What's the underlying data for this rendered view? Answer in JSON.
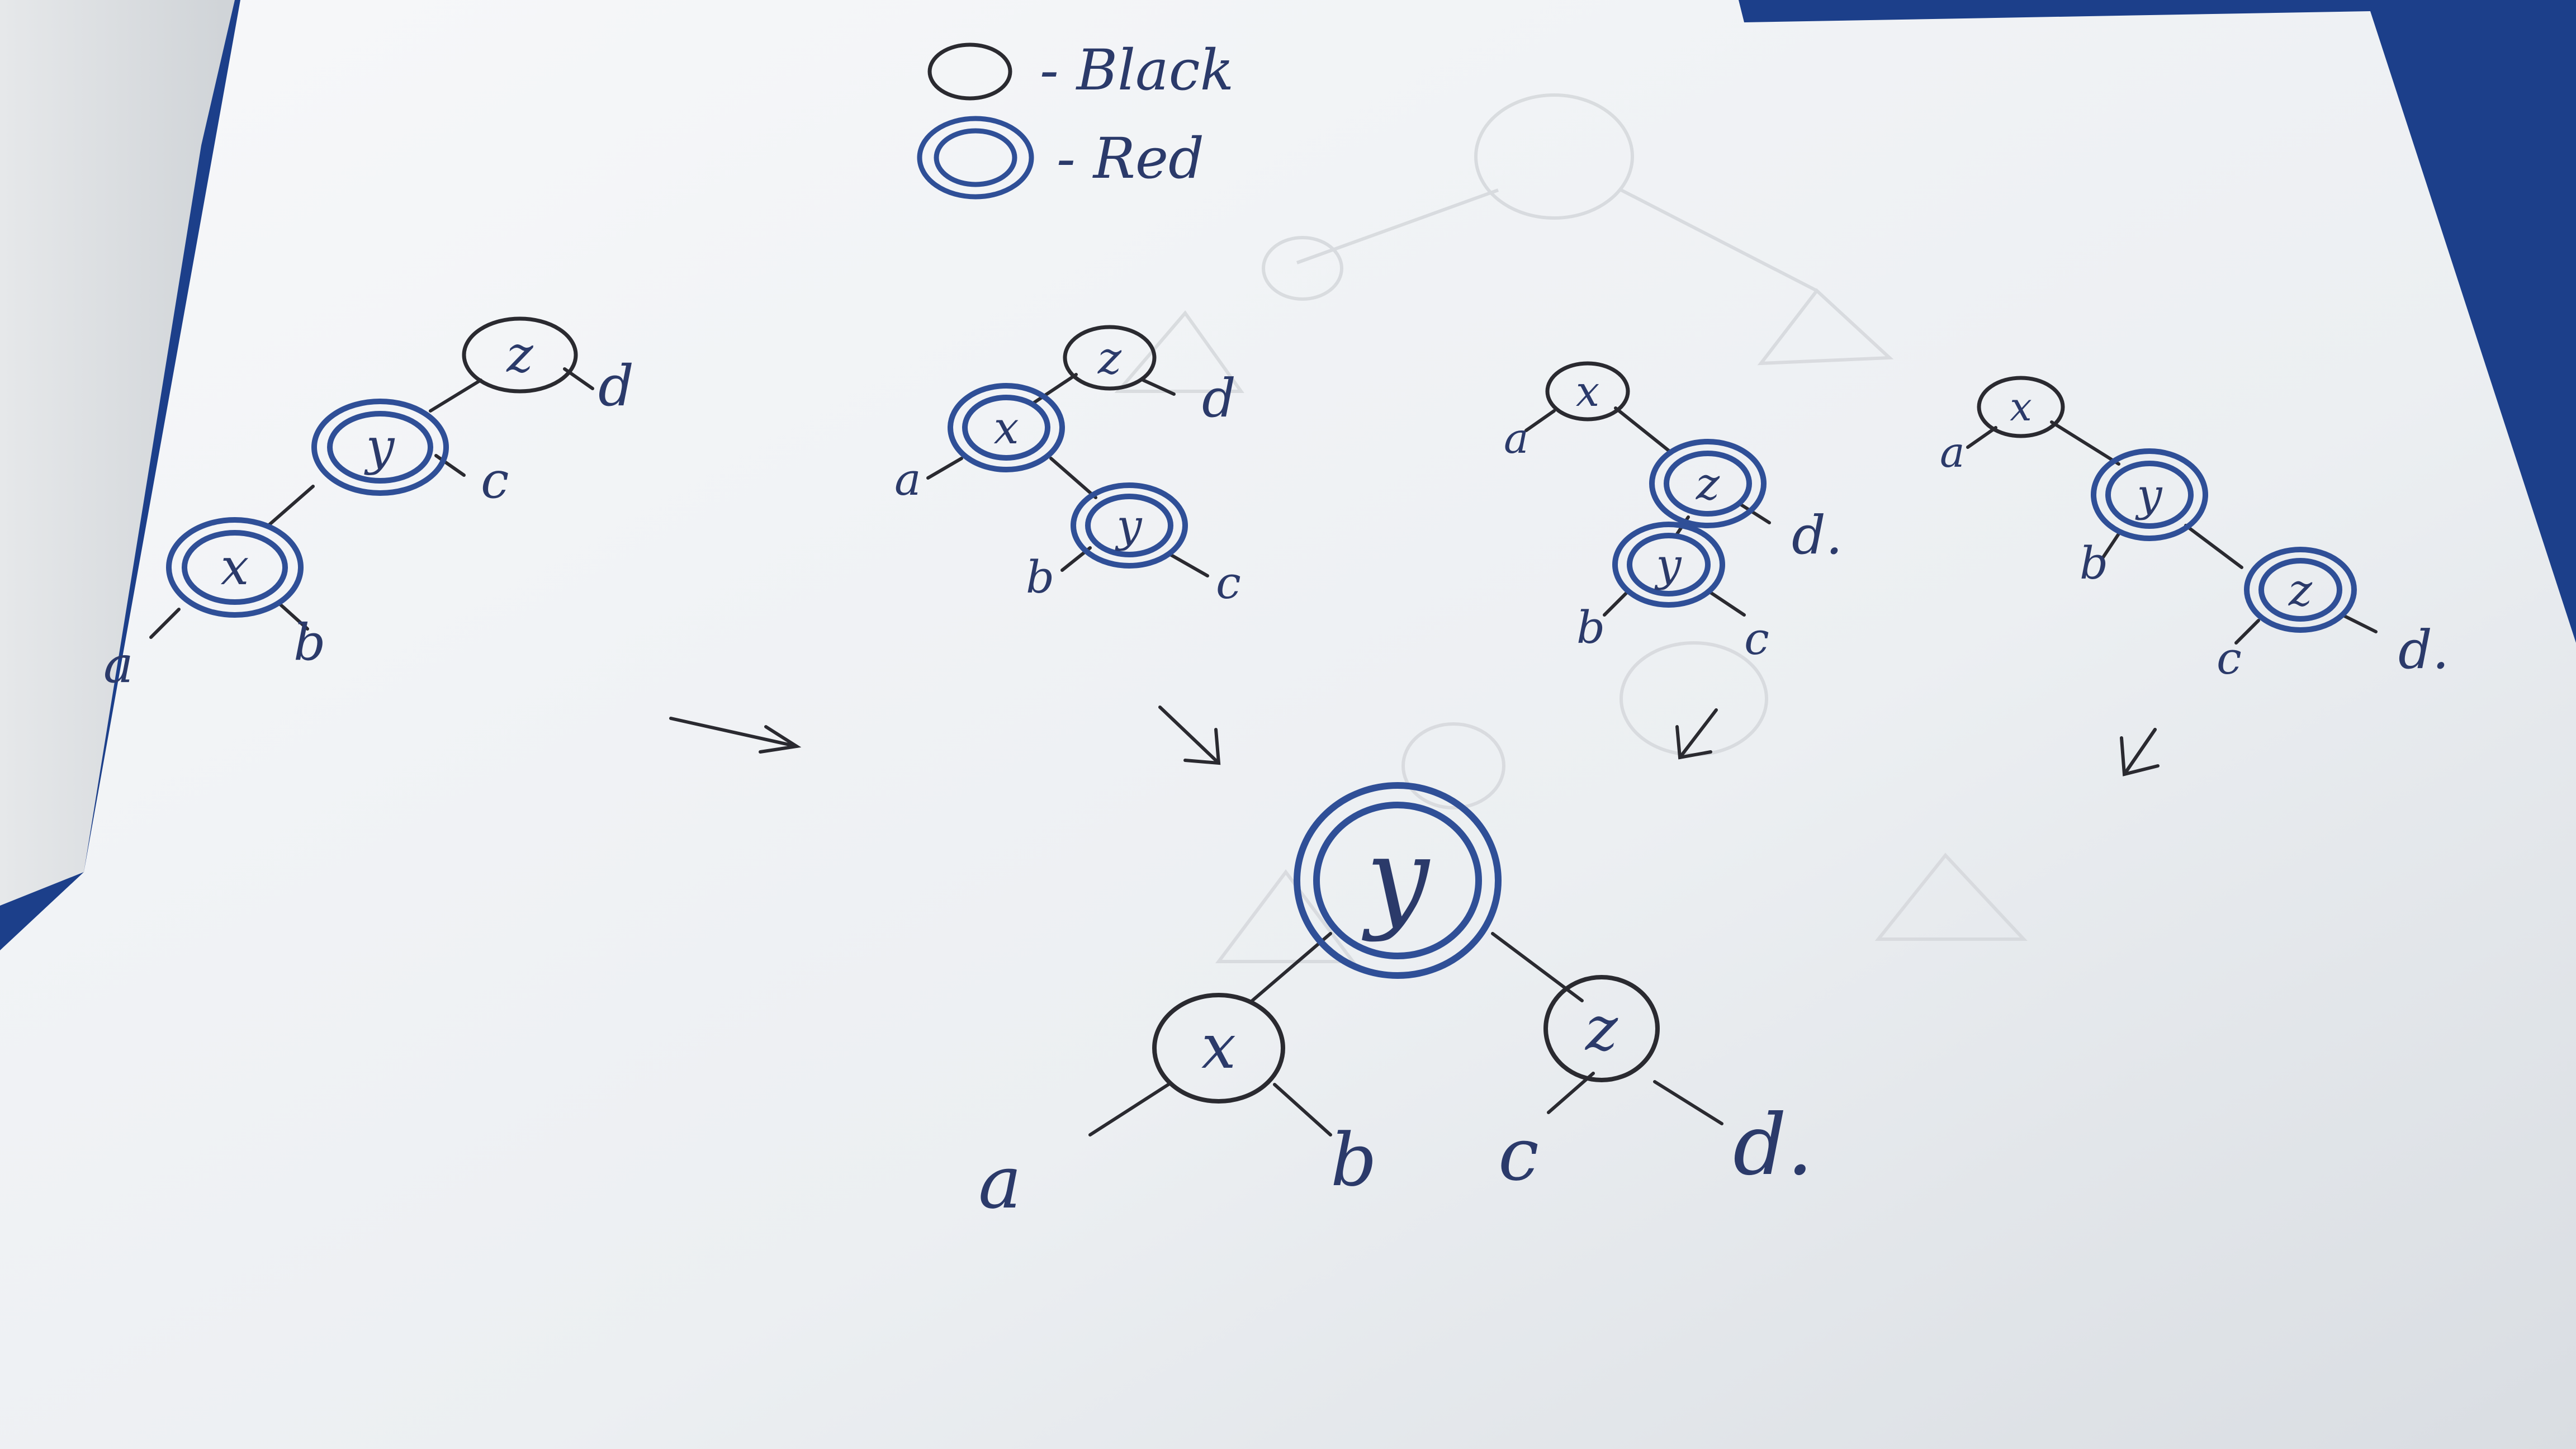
{
  "legend": {
    "black_label": "- Black",
    "red_label": "- Red"
  },
  "colors": {
    "red_node_ink": "#2f4f97",
    "black_node_ink": "#2a2a30",
    "paper": "#f2f4f6",
    "background": "#1c3f8a"
  },
  "cases": [
    {
      "nodes": [
        {
          "id": "z",
          "label": "z",
          "color": "black"
        },
        {
          "id": "y",
          "label": "y",
          "color": "red"
        },
        {
          "id": "x",
          "label": "x",
          "color": "red"
        }
      ],
      "leaves": [
        "a",
        "b",
        "c",
        "d"
      ]
    },
    {
      "nodes": [
        {
          "id": "z",
          "label": "z",
          "color": "black"
        },
        {
          "id": "x",
          "label": "x",
          "color": "red"
        },
        {
          "id": "y",
          "label": "y",
          "color": "red"
        }
      ],
      "leaves": [
        "a",
        "b",
        "c",
        "d"
      ]
    },
    {
      "nodes": [
        {
          "id": "x",
          "label": "x",
          "color": "black"
        },
        {
          "id": "z",
          "label": "z",
          "color": "red"
        },
        {
          "id": "y",
          "label": "y",
          "color": "red"
        }
      ],
      "leaves": [
        "a",
        "b",
        "c",
        "d."
      ]
    },
    {
      "nodes": [
        {
          "id": "x",
          "label": "x",
          "color": "black"
        },
        {
          "id": "y",
          "label": "y",
          "color": "red"
        },
        {
          "id": "z",
          "label": "z",
          "color": "red"
        }
      ],
      "leaves": [
        "a",
        "b",
        "c",
        "d."
      ]
    }
  ],
  "result": {
    "nodes": [
      {
        "id": "y",
        "label": "y",
        "color": "red"
      },
      {
        "id": "x",
        "label": "x",
        "color": "black"
      },
      {
        "id": "z",
        "label": "z",
        "color": "black"
      }
    ],
    "leaves": [
      "a",
      "b",
      "c",
      "d."
    ]
  }
}
